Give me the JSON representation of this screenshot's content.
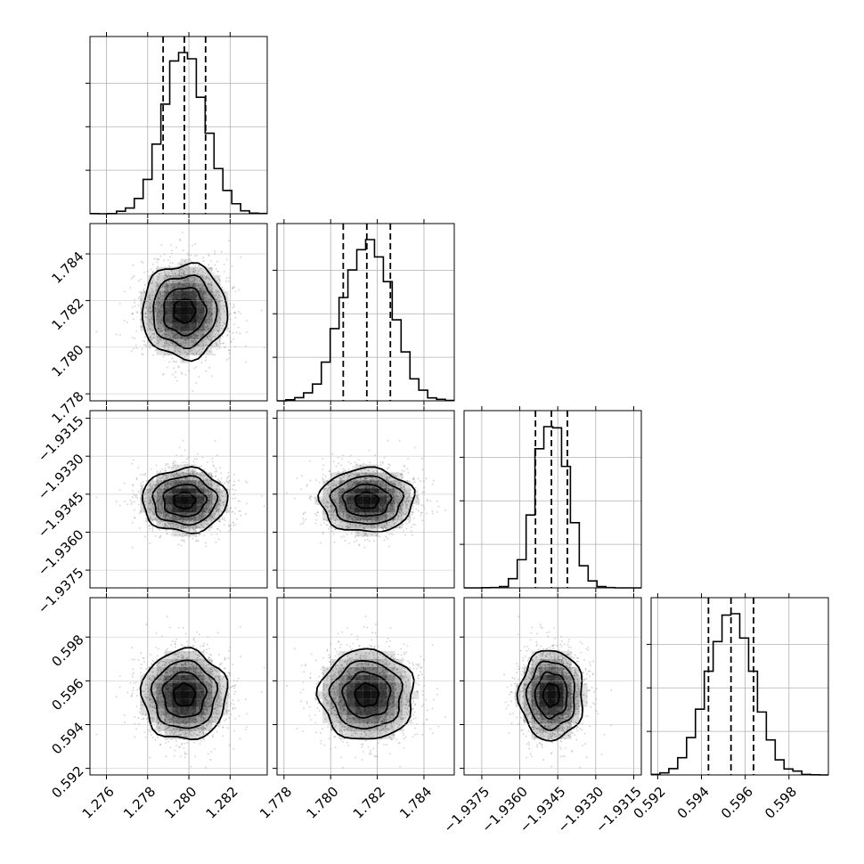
{
  "chart_data": {
    "type": "corner",
    "parameters": [
      {
        "mean": 1.27978,
        "std": 0.00103,
        "range": [
          1.2752,
          1.2838
        ],
        "ticks": [
          1.276,
          1.278,
          1.28,
          1.282
        ],
        "tick_labels": [
          "1.276",
          "1.278",
          "1.280",
          "1.282"
        ],
        "quantiles": [
          1.27875,
          1.27978,
          1.28081
        ]
      },
      {
        "mean": 1.78155,
        "std": 0.00101,
        "range": [
          1.7777,
          1.7853
        ],
        "ticks": [
          1.778,
          1.78,
          1.782,
          1.784
        ],
        "tick_labels": [
          "1.778",
          "1.780",
          "1.782",
          "1.784"
        ],
        "quantiles": [
          1.78054,
          1.78155,
          1.78256
        ]
      },
      {
        "mean": -1.93475,
        "std": 0.00063,
        "range": [
          -1.9382,
          -1.9312
        ],
        "ticks": [
          -1.9375,
          -1.936,
          -1.9345,
          -1.933,
          -1.9315
        ],
        "tick_labels": [
          "−1.9375",
          "−1.9360",
          "−1.9345",
          "−1.9330",
          "−1.9315"
        ],
        "quantiles": [
          -1.93538,
          -1.93475,
          -1.93412
        ]
      },
      {
        "mean": 0.59535,
        "std": 0.00103,
        "range": [
          0.5917,
          0.5998
        ],
        "ticks": [
          0.592,
          0.594,
          0.596,
          0.598
        ],
        "tick_labels": [
          "0.592",
          "0.594",
          "0.596",
          "0.598"
        ],
        "quantiles": [
          0.59432,
          0.59535,
          0.59638
        ]
      }
    ],
    "histogram_bins": 20,
    "contour_levels": [
      0.118,
      0.393,
      0.675,
      0.865
    ],
    "grid": true,
    "quantile_line_style": "dashed",
    "colors": {
      "line": "#000000",
      "points": "#7a7a7a",
      "density": "#000000",
      "grid": "#b0b0b0"
    }
  }
}
